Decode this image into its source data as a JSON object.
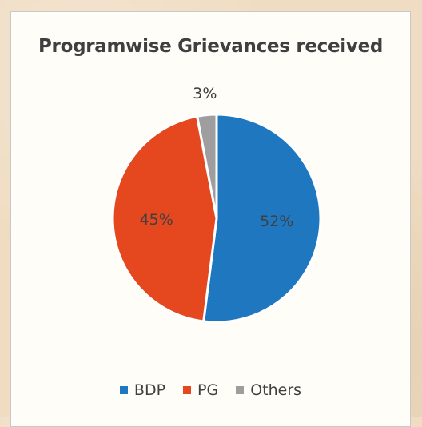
{
  "chart_data": {
    "type": "pie",
    "title": "Programwise Grievances received",
    "categories": [
      "BDP",
      "PG",
      "Others"
    ],
    "values": [
      52,
      45,
      3
    ],
    "labels": [
      "52%",
      "45%",
      "3%"
    ],
    "colors": [
      "#1f77c0",
      "#e5471f",
      "#9e9e9e"
    ],
    "legend": "bottom"
  }
}
